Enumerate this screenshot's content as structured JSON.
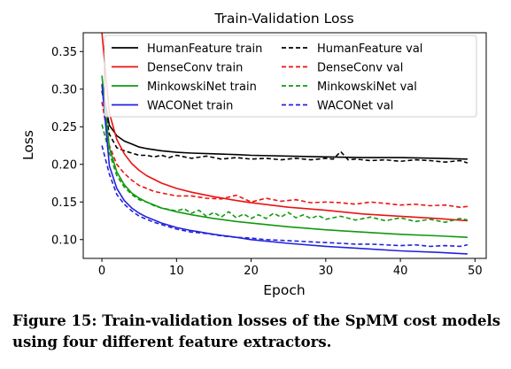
{
  "caption": {
    "figure_label": "Figure 15:",
    "text": "Train-validation losses of the SpMM cost models using four different feature extractors."
  },
  "chart_data": {
    "type": "line",
    "title": "Train-Validation Loss",
    "xlabel": "Epoch",
    "ylabel": "Loss",
    "xlim": [
      -2.5,
      51.5
    ],
    "ylim": [
      0.075,
      0.375
    ],
    "xticks": [
      0,
      10,
      20,
      30,
      40,
      50
    ],
    "yticks": [
      0.1,
      0.15,
      0.2,
      0.25,
      0.3,
      0.35
    ],
    "grid": false,
    "legend_position": "top",
    "legend_columns": 2,
    "series": [
      {
        "name": "HumanFeature train",
        "color": "#000000",
        "style": "solid",
        "x": [
          0,
          1,
          2,
          3,
          4,
          5,
          6,
          8,
          10,
          12,
          15,
          18,
          20,
          25,
          30,
          35,
          40,
          45,
          49
        ],
        "y": [
          0.305,
          0.252,
          0.238,
          0.231,
          0.227,
          0.223,
          0.221,
          0.218,
          0.216,
          0.215,
          0.214,
          0.213,
          0.212,
          0.211,
          0.21,
          0.209,
          0.209,
          0.208,
          0.207
        ]
      },
      {
        "name": "HumanFeature val",
        "color": "#000000",
        "style": "dashed",
        "x": [
          0,
          1,
          2,
          3,
          4,
          5,
          6,
          7,
          8,
          9,
          10,
          12,
          14,
          16,
          18,
          20,
          22,
          24,
          26,
          28,
          30,
          31,
          32,
          33,
          34,
          36,
          38,
          40,
          42,
          44,
          46,
          48,
          49
        ],
        "y": [
          0.298,
          0.24,
          0.222,
          0.218,
          0.215,
          0.212,
          0.212,
          0.21,
          0.212,
          0.209,
          0.212,
          0.208,
          0.211,
          0.207,
          0.209,
          0.207,
          0.208,
          0.206,
          0.208,
          0.206,
          0.208,
          0.207,
          0.217,
          0.206,
          0.207,
          0.205,
          0.206,
          0.204,
          0.206,
          0.205,
          0.203,
          0.205,
          0.202
        ]
      },
      {
        "name": "DenseConv train",
        "color": "#ee1111",
        "style": "solid",
        "x": [
          0,
          1,
          2,
          3,
          4,
          5,
          6,
          8,
          10,
          12,
          15,
          18,
          20,
          25,
          30,
          35,
          40,
          45,
          49
        ],
        "y": [
          0.375,
          0.268,
          0.233,
          0.214,
          0.201,
          0.192,
          0.185,
          0.175,
          0.168,
          0.163,
          0.157,
          0.152,
          0.149,
          0.143,
          0.139,
          0.134,
          0.131,
          0.128,
          0.125
        ]
      },
      {
        "name": "DenseConv val",
        "color": "#ee1111",
        "style": "dashed",
        "x": [
          0,
          1,
          2,
          3,
          4,
          5,
          6,
          7,
          8,
          9,
          10,
          12,
          14,
          16,
          18,
          20,
          22,
          24,
          26,
          28,
          30,
          32,
          34,
          36,
          38,
          40,
          42,
          44,
          46,
          48,
          49
        ],
        "y": [
          0.283,
          0.225,
          0.2,
          0.188,
          0.179,
          0.172,
          0.168,
          0.164,
          0.162,
          0.16,
          0.158,
          0.158,
          0.155,
          0.154,
          0.159,
          0.15,
          0.155,
          0.151,
          0.153,
          0.149,
          0.15,
          0.149,
          0.147,
          0.15,
          0.148,
          0.146,
          0.147,
          0.145,
          0.146,
          0.143,
          0.144
        ]
      },
      {
        "name": "MinkowskiNet train",
        "color": "#119911",
        "style": "solid",
        "x": [
          0,
          1,
          2,
          3,
          4,
          5,
          6,
          8,
          10,
          12,
          15,
          18,
          20,
          25,
          30,
          35,
          40,
          45,
          49
        ],
        "y": [
          0.318,
          0.222,
          0.19,
          0.173,
          0.162,
          0.155,
          0.15,
          0.142,
          0.137,
          0.133,
          0.128,
          0.124,
          0.122,
          0.117,
          0.113,
          0.11,
          0.107,
          0.105,
          0.103
        ]
      },
      {
        "name": "MinkowskiNet val",
        "color": "#119911",
        "style": "dashed",
        "x": [
          0,
          1,
          2,
          3,
          4,
          5,
          6,
          7,
          8,
          9,
          10,
          11,
          12,
          13,
          14,
          15,
          16,
          17,
          18,
          19,
          20,
          21,
          22,
          23,
          24,
          25,
          26,
          27,
          28,
          29,
          30,
          32,
          34,
          36,
          38,
          40,
          42,
          44,
          46,
          48,
          49
        ],
        "y": [
          0.253,
          0.215,
          0.185,
          0.17,
          0.16,
          0.153,
          0.15,
          0.145,
          0.142,
          0.14,
          0.138,
          0.141,
          0.135,
          0.139,
          0.131,
          0.136,
          0.13,
          0.137,
          0.129,
          0.134,
          0.128,
          0.133,
          0.128,
          0.135,
          0.13,
          0.136,
          0.129,
          0.133,
          0.128,
          0.132,
          0.127,
          0.131,
          0.126,
          0.13,
          0.125,
          0.129,
          0.124,
          0.127,
          0.123,
          0.128,
          0.126
        ]
      },
      {
        "name": "WACONet train",
        "color": "#2222dd",
        "style": "solid",
        "x": [
          0,
          1,
          2,
          3,
          4,
          5,
          6,
          8,
          10,
          12,
          15,
          18,
          20,
          25,
          30,
          35,
          40,
          45,
          49
        ],
        "y": [
          0.307,
          0.198,
          0.168,
          0.152,
          0.142,
          0.135,
          0.13,
          0.122,
          0.116,
          0.112,
          0.107,
          0.103,
          0.1,
          0.095,
          0.091,
          0.088,
          0.085,
          0.083,
          0.081
        ]
      },
      {
        "name": "WACONet val",
        "color": "#2222dd",
        "style": "dashed",
        "x": [
          0,
          1,
          2,
          3,
          4,
          5,
          6,
          7,
          8,
          10,
          12,
          14,
          16,
          18,
          20,
          22,
          24,
          26,
          28,
          30,
          32,
          34,
          36,
          38,
          40,
          42,
          44,
          46,
          48,
          49
        ],
        "y": [
          0.225,
          0.187,
          0.16,
          0.147,
          0.138,
          0.131,
          0.127,
          0.123,
          0.12,
          0.114,
          0.11,
          0.108,
          0.105,
          0.103,
          0.102,
          0.1,
          0.099,
          0.098,
          0.097,
          0.096,
          0.095,
          0.094,
          0.094,
          0.093,
          0.092,
          0.093,
          0.091,
          0.092,
          0.091,
          0.093
        ]
      }
    ]
  }
}
